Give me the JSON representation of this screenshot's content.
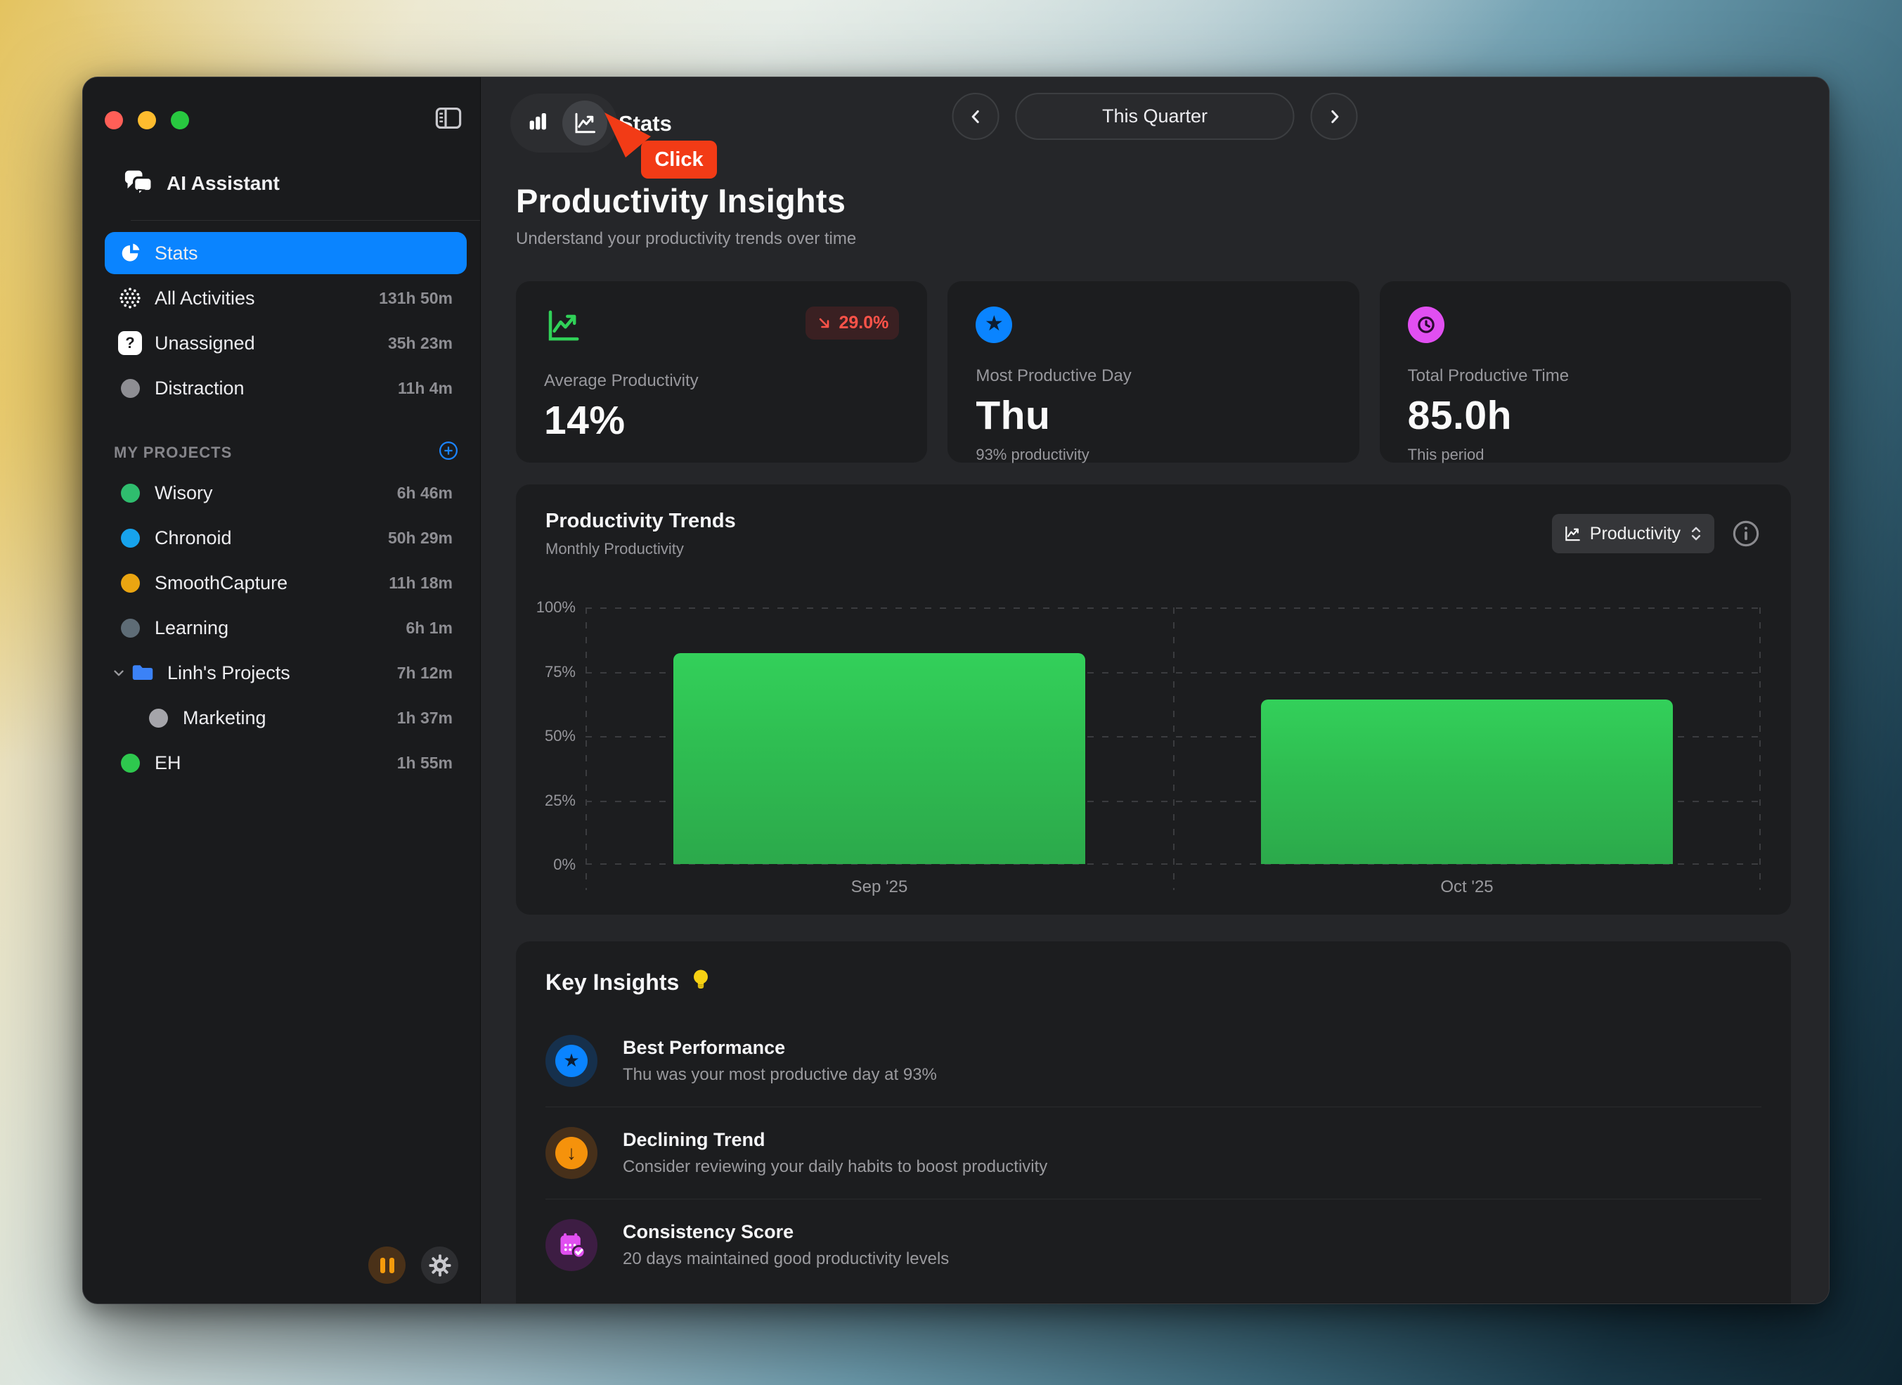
{
  "sidebar": {
    "ai_assistant": "AI Assistant",
    "nav": [
      {
        "label": "Stats",
        "time": ""
      },
      {
        "label": "All Activities",
        "time": "131h 50m"
      },
      {
        "label": "Unassigned",
        "time": "35h 23m"
      },
      {
        "label": "Distraction",
        "time": "11h 4m"
      }
    ],
    "projects_header": "MY PROJECTS",
    "projects": [
      {
        "label": "Wisory",
        "time": "6h 46m",
        "dot_color": "#2fbd6e"
      },
      {
        "label": "Chronoid",
        "time": "50h 29m",
        "dot_color": "#17a3ec"
      },
      {
        "label": "SmoothCapture",
        "time": "11h 18m",
        "dot_color": "#eaa511"
      },
      {
        "label": "Learning",
        "time": "6h 1m",
        "dot_color": "#5e6c76"
      },
      {
        "label": "Linh's Projects",
        "time": "7h 12m",
        "folder": true
      },
      {
        "label": "Marketing",
        "time": "1h 37m",
        "dot_color": "#a5a5aa",
        "indent": true
      },
      {
        "label": "EH",
        "time": "1h 55m",
        "dot_color": "#2ec84e"
      }
    ]
  },
  "toolbar": {
    "title": "Stats"
  },
  "annotation": {
    "label": "Click",
    "color": "#f23b16"
  },
  "period_nav": {
    "label": "This Quarter"
  },
  "page_header": {
    "title": "Productivity Insights",
    "subtitle": "Understand your productivity trends over time"
  },
  "stat_cards": [
    {
      "label": "Average Productivity",
      "value": "14%",
      "badge": "29.0%",
      "icon": "trend-up-icon",
      "accent": "#30d158",
      "badge_color": "#ff5349"
    },
    {
      "label": "Most Productive Day",
      "value": "Thu",
      "sub": "93% productivity",
      "icon": "star-icon",
      "accent": "#0a84ff"
    },
    {
      "label": "Total Productive Time",
      "value": "85.0h",
      "sub": "This period",
      "icon": "clock-icon",
      "accent": "#e14ff1"
    }
  ],
  "trends_card": {
    "title": "Productivity Trends",
    "subtitle": "Monthly Productivity",
    "selector_label": "Productivity"
  },
  "chart_data": {
    "type": "bar",
    "title": "Productivity Trends",
    "subtitle": "Monthly Productivity",
    "categories": [
      "Sep '25",
      "Oct '25"
    ],
    "values": [
      82,
      64
    ],
    "value_unit": "%",
    "ylim": [
      0,
      100
    ],
    "yticks": [
      "0%",
      "25%",
      "50%",
      "75%",
      "100%"
    ],
    "grid": "dashed",
    "legend": false,
    "bar_color": "#30d158"
  },
  "insights": {
    "title": "Key Insights",
    "items": [
      {
        "title": "Best Performance",
        "desc": "Thu was your most productive day at 93%",
        "icon": "star-icon",
        "accent": "#0a84ff"
      },
      {
        "title": "Declining Trend",
        "desc": "Consider reviewing your daily habits to boost productivity",
        "icon": "arrow-down-icon",
        "accent": "#f5920b"
      },
      {
        "title": "Consistency Score",
        "desc": "20 days maintained good productivity levels",
        "icon": "calendar-check-icon",
        "accent": "#e14ff1"
      }
    ]
  }
}
